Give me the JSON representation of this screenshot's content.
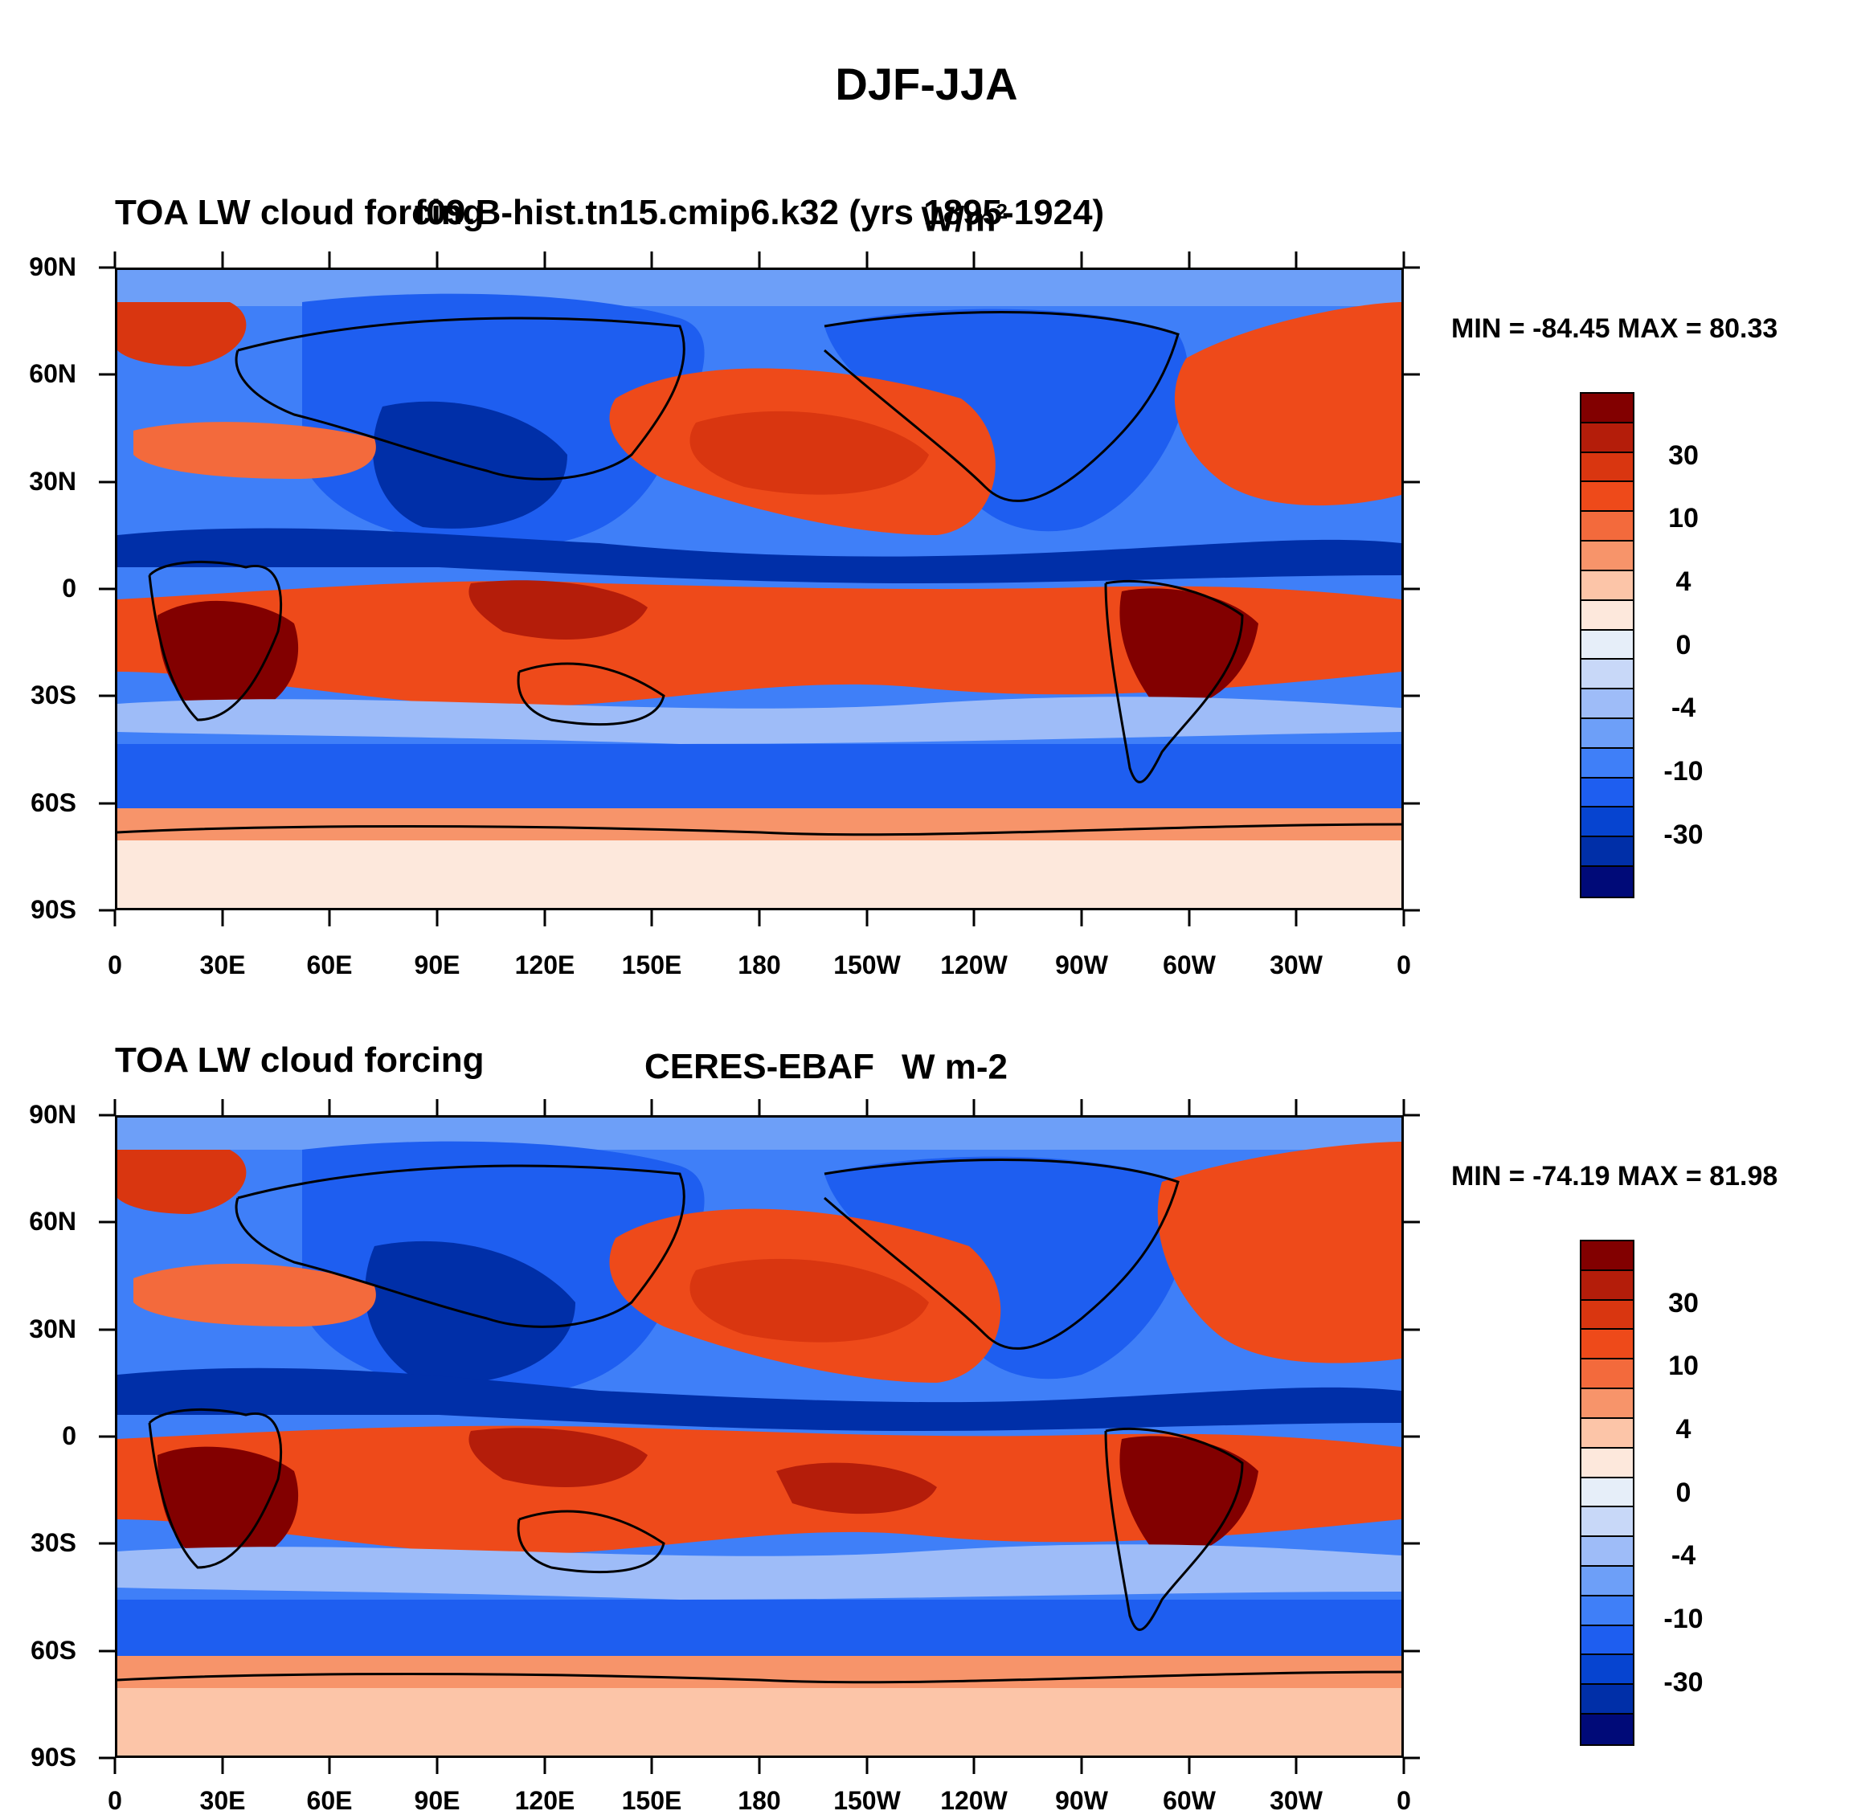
{
  "figure": {
    "title": "DJF-JJA"
  },
  "colors": {
    "cbar": [
      "#000a78",
      "#002fa8",
      "#0644d0",
      "#1e5ef0",
      "#3f7ff8",
      "#6d9ff8",
      "#9ebcf8",
      "#c8d8f8",
      "#e6eef9",
      "#fde8dc",
      "#fcc5a8",
      "#f7946a",
      "#f36a3c",
      "#ee4a1a",
      "#d93610",
      "#b41d0a",
      "#820000"
    ]
  },
  "axes": {
    "lat_labels": [
      "90N",
      "60N",
      "30N",
      "0",
      "30S",
      "60S",
      "90S"
    ],
    "lon_labels": [
      "0",
      "30E",
      "60E",
      "90E",
      "120E",
      "150E",
      "180",
      "150W",
      "120W",
      "90W",
      "60W",
      "30W",
      "0"
    ]
  },
  "colorbar": {
    "labels": [
      "30",
      "10",
      "4",
      "0",
      "-4",
      "-10",
      "-30"
    ]
  },
  "panels": [
    {
      "left_title": "TOA LW cloud forcing",
      "center_title": "f09.B-hist.tn15.cmip6.k32 (yrs 1895-1924)",
      "units_base": "W/m",
      "units_sup": "2",
      "minmax": "MIN = -84.45 MAX =  80.33",
      "map_image": "modeled-cloud-forcing-difference-map"
    },
    {
      "left_title": "TOA LW cloud forcing",
      "center_title": "CERES-EBAF",
      "units_base": "W m-2",
      "units_sup": "",
      "minmax": "MIN = -74.19 MAX =  81.98",
      "map_image": "observed-cloud-forcing-difference-map"
    }
  ]
}
